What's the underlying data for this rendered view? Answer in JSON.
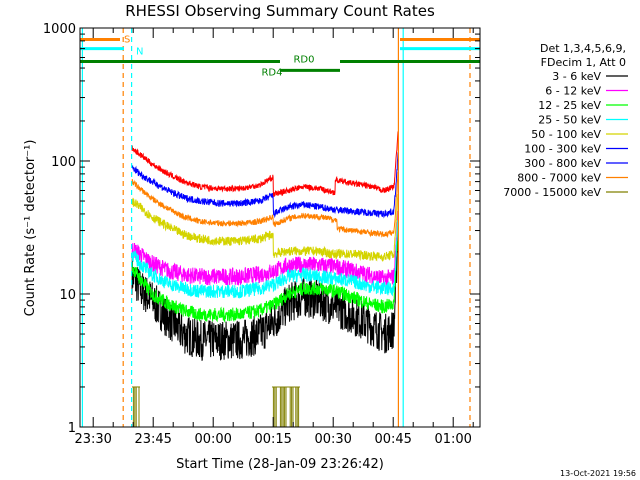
{
  "chart_data": {
    "type": "line",
    "title": "RHESSI Observing Summary Count Rates",
    "xlabel": "Start Time (28-Jan-09 23:26:42)",
    "ylabel": "Count Rate (s⁻¹ detector⁻¹)",
    "x_tick_labels": [
      "23:30",
      "23:45",
      "00:00",
      "00:15",
      "00:30",
      "00:45",
      "01:00"
    ],
    "x_tick_minutes": [
      3.3,
      18.3,
      33.3,
      48.3,
      63.3,
      78.3,
      93.3
    ],
    "xlim_minutes": [
      0,
      100
    ],
    "y_scale": "log",
    "ylim": [
      1,
      1000
    ],
    "y_tick_labels": [
      "1",
      "10",
      "100",
      "1000"
    ],
    "y_tick_values": [
      1,
      10,
      100,
      1000
    ],
    "legend_header": [
      "Det 1,3,4,5,6,9,",
      "FDecim 1, Att 0"
    ],
    "legend_position": "right",
    "series": [
      {
        "name": "3 - 6 keV",
        "color": "#000000",
        "points": [
          [
            13,
            14
          ],
          [
            15,
            11
          ],
          [
            18,
            9
          ],
          [
            22,
            6.5
          ],
          [
            26,
            5
          ],
          [
            30,
            4.5
          ],
          [
            35,
            4.5
          ],
          [
            40,
            4.5
          ],
          [
            45,
            5
          ],
          [
            49,
            6.5
          ],
          [
            52,
            8.5
          ],
          [
            56,
            9.5
          ],
          [
            60,
            9
          ],
          [
            64,
            8
          ],
          [
            68,
            7
          ],
          [
            72,
            6
          ],
          [
            76,
            5
          ],
          [
            78.5,
            5.5
          ],
          [
            79.5,
            30
          ]
        ],
        "noise": 0.35
      },
      {
        "name": "6 - 12 keV",
        "color": "#ff00ff",
        "points": [
          [
            13,
            22
          ],
          [
            15,
            20
          ],
          [
            18,
            17
          ],
          [
            22,
            15
          ],
          [
            26,
            14
          ],
          [
            30,
            13.5
          ],
          [
            35,
            13.5
          ],
          [
            40,
            13.5
          ],
          [
            45,
            14
          ],
          [
            49,
            15
          ],
          [
            52,
            16.5
          ],
          [
            56,
            16.5
          ],
          [
            60,
            16.5
          ],
          [
            64,
            16
          ],
          [
            68,
            15
          ],
          [
            72,
            14
          ],
          [
            76,
            13
          ],
          [
            78.5,
            13.5
          ],
          [
            79.5,
            40
          ]
        ],
        "noise": 0.15
      },
      {
        "name": "12 - 25 keV",
        "color": "#00ff00",
        "points": [
          [
            13,
            16
          ],
          [
            15,
            13
          ],
          [
            18,
            10
          ],
          [
            22,
            8.5
          ],
          [
            26,
            7.5
          ],
          [
            30,
            7
          ],
          [
            35,
            7
          ],
          [
            40,
            7
          ],
          [
            45,
            7.5
          ],
          [
            49,
            8.5
          ],
          [
            52,
            10
          ],
          [
            56,
            11
          ],
          [
            60,
            11
          ],
          [
            64,
            10.5
          ],
          [
            68,
            9.5
          ],
          [
            72,
            8.5
          ],
          [
            76,
            8
          ],
          [
            78.5,
            8.5
          ],
          [
            79.5,
            35
          ]
        ],
        "noise": 0.12
      },
      {
        "name": "25 - 50 keV",
        "color": "#00ffff",
        "points": [
          [
            13,
            20
          ],
          [
            15,
            17
          ],
          [
            18,
            14
          ],
          [
            22,
            12
          ],
          [
            26,
            11
          ],
          [
            30,
            10.5
          ],
          [
            35,
            10.5
          ],
          [
            40,
            10.5
          ],
          [
            45,
            11
          ],
          [
            49,
            12
          ],
          [
            52,
            13.5
          ],
          [
            56,
            14
          ],
          [
            60,
            13.5
          ],
          [
            64,
            13
          ],
          [
            68,
            12.5
          ],
          [
            72,
            11.5
          ],
          [
            76,
            11
          ],
          [
            78.5,
            11
          ],
          [
            79.5,
            35
          ]
        ],
        "noise": 0.12
      },
      {
        "name": "50 - 100 keV",
        "color": "#d4d400",
        "points": [
          [
            13,
            50
          ],
          [
            15,
            45
          ],
          [
            18,
            38
          ],
          [
            22,
            32
          ],
          [
            26,
            28
          ],
          [
            30,
            26
          ],
          [
            35,
            25
          ],
          [
            40,
            25
          ],
          [
            45,
            26
          ],
          [
            48,
            28
          ],
          [
            48.3,
            28
          ],
          [
            48.3,
            20
          ],
          [
            52,
            21
          ],
          [
            56,
            21
          ],
          [
            60,
            21
          ],
          [
            63,
            20
          ],
          [
            63,
            20
          ],
          [
            68,
            20
          ],
          [
            72,
            19.5
          ],
          [
            76,
            19
          ],
          [
            78.5,
            20
          ],
          [
            79.5,
            55
          ]
        ],
        "noise": 0.08
      },
      {
        "name": "100 - 300 keV",
        "color": "#0000ff",
        "points": [
          [
            13,
            90
          ],
          [
            15,
            80
          ],
          [
            18,
            70
          ],
          [
            22,
            60
          ],
          [
            26,
            53
          ],
          [
            30,
            50
          ],
          [
            35,
            48
          ],
          [
            40,
            48
          ],
          [
            45,
            50
          ],
          [
            48,
            55
          ],
          [
            48.3,
            55
          ],
          [
            48.3,
            40
          ],
          [
            52,
            45
          ],
          [
            56,
            47
          ],
          [
            60,
            45
          ],
          [
            64,
            43
          ],
          [
            68,
            42
          ],
          [
            72,
            41
          ],
          [
            76,
            40
          ],
          [
            78.5,
            42
          ],
          [
            79.5,
            110
          ]
        ],
        "noise": 0.06
      },
      {
        "name": "300 - 800 keV",
        "color": "#0000ff",
        "points": [
          [
            13,
            90
          ],
          [
            15,
            80
          ],
          [
            18,
            70
          ],
          [
            22,
            60
          ],
          [
            26,
            53
          ],
          [
            30,
            50
          ],
          [
            35,
            48
          ],
          [
            40,
            48
          ],
          [
            45,
            50
          ],
          [
            48,
            55
          ],
          [
            48.3,
            55
          ],
          [
            48.3,
            40
          ],
          [
            52,
            45
          ],
          [
            56,
            47
          ],
          [
            60,
            45
          ],
          [
            64,
            43
          ],
          [
            68,
            42
          ],
          [
            72,
            41
          ],
          [
            76,
            40
          ],
          [
            78.5,
            42
          ],
          [
            79.5,
            110
          ]
        ],
        "noise": 0.0
      },
      {
        "name": "800 - 7000 keV",
        "color": "#ff8000",
        "points": [
          [
            13,
            70
          ],
          [
            15,
            62
          ],
          [
            18,
            52
          ],
          [
            22,
            44
          ],
          [
            26,
            38
          ],
          [
            30,
            35
          ],
          [
            35,
            34
          ],
          [
            40,
            34
          ],
          [
            45,
            35
          ],
          [
            48,
            38
          ],
          [
            48.3,
            38
          ],
          [
            48.3,
            33
          ],
          [
            52,
            37
          ],
          [
            56,
            39
          ],
          [
            60,
            38
          ],
          [
            64,
            36
          ],
          [
            64.3,
            36
          ],
          [
            64.3,
            31
          ],
          [
            68,
            30
          ],
          [
            72,
            29
          ],
          [
            76,
            28
          ],
          [
            78.5,
            29
          ],
          [
            79.5,
            80
          ]
        ],
        "noise": 0.05
      },
      {
        "name": "7000 - 15000 keV",
        "color": "#808000",
        "points": [],
        "noise": 0.0
      }
    ],
    "red_trace": {
      "color": "#ff0000",
      "points": [
        [
          13,
          125
        ],
        [
          15,
          112
        ],
        [
          18,
          95
        ],
        [
          22,
          80
        ],
        [
          26,
          70
        ],
        [
          30,
          64
        ],
        [
          35,
          62
        ],
        [
          40,
          62
        ],
        [
          45,
          66
        ],
        [
          48,
          75
        ],
        [
          48.3,
          75
        ],
        [
          48.3,
          56
        ],
        [
          52,
          60
        ],
        [
          56,
          64
        ],
        [
          60,
          62
        ],
        [
          63.5,
          58
        ],
        [
          63.8,
          58
        ],
        [
          63.8,
          72
        ],
        [
          68,
          68
        ],
        [
          72,
          65
        ],
        [
          76,
          60
        ],
        [
          78.5,
          64
        ],
        [
          79.5,
          160
        ]
      ],
      "noise": 0.05
    },
    "state_bars": [
      {
        "label": "S",
        "color": "#ff8000",
        "y": 820,
        "segments": [
          [
            0,
            10
          ],
          [
            80,
            100
          ]
        ]
      },
      {
        "label": "N",
        "color": "#00ffff",
        "y": 700,
        "segments": [
          [
            0,
            11
          ],
          [
            80,
            100
          ]
        ]
      },
      {
        "label": "RD0",
        "color": "#008000",
        "y": 560,
        "segments": [
          [
            0,
            50
          ],
          [
            65,
            100
          ]
        ]
      },
      {
        "label": "RD4",
        "color": "#008000",
        "y": 480,
        "segments": [
          [
            50,
            65
          ]
        ]
      }
    ],
    "vertical_markers": [
      {
        "color": "#ff8000",
        "x": 10.8,
        "dashed": true
      },
      {
        "color": "#00ffff",
        "x": 12.9,
        "dashed": true
      },
      {
        "color": "#ff8000",
        "x": 79.6,
        "dashed": false
      },
      {
        "color": "#00ffff",
        "x": 80.8,
        "dashed": false
      },
      {
        "color": "#ff8000",
        "x": 97.5,
        "dashed": true
      },
      {
        "color": "#00ffff",
        "x": 0.6,
        "dashed": false
      }
    ],
    "olive_spikes": [
      [
        13,
        15
      ],
      [
        48,
        55
      ]
    ],
    "timestamp": "13-Oct-2021 19:56"
  }
}
